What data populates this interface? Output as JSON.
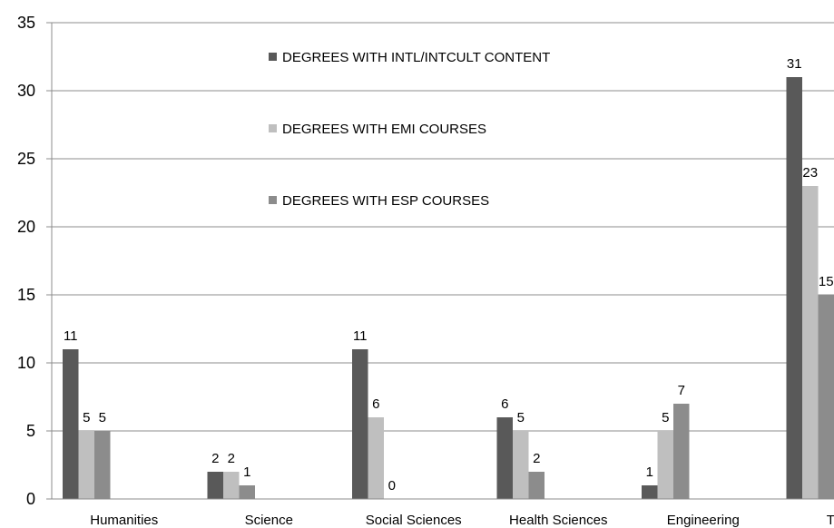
{
  "chart_data": {
    "type": "bar",
    "title": "",
    "xlabel": "",
    "ylabel": "",
    "ylim": [
      0,
      35
    ],
    "yticks": [
      0,
      5,
      10,
      15,
      20,
      25,
      30,
      35
    ],
    "grid": true,
    "legend_position": "top-center",
    "categories": [
      "Humanities",
      "Science",
      "Social Sciences",
      "Health Sciences",
      "Engineering",
      "TOTAL"
    ],
    "series": [
      {
        "name": "DEGREES WITH INTL/INTCULT CONTENT",
        "values": [
          11,
          2,
          11,
          6,
          1,
          31
        ],
        "labels": [
          "11",
          "2",
          "11",
          "6",
          "1",
          "31"
        ],
        "color": "#595959"
      },
      {
        "name": "DEGREES WITH EMI COURSES",
        "values": [
          5,
          2,
          6,
          5,
          5,
          23
        ],
        "labels": [
          "5",
          "2",
          "6",
          "5",
          "5",
          "23"
        ],
        "color": "#bfbfbf"
      },
      {
        "name": "DEGREES WITH ESP COURSES",
        "values": [
          5,
          1,
          0,
          2,
          7,
          15
        ],
        "labels": [
          "5",
          "1",
          "0",
          "2",
          "7",
          "15"
        ],
        "color": "#8c8c8c"
      }
    ]
  }
}
